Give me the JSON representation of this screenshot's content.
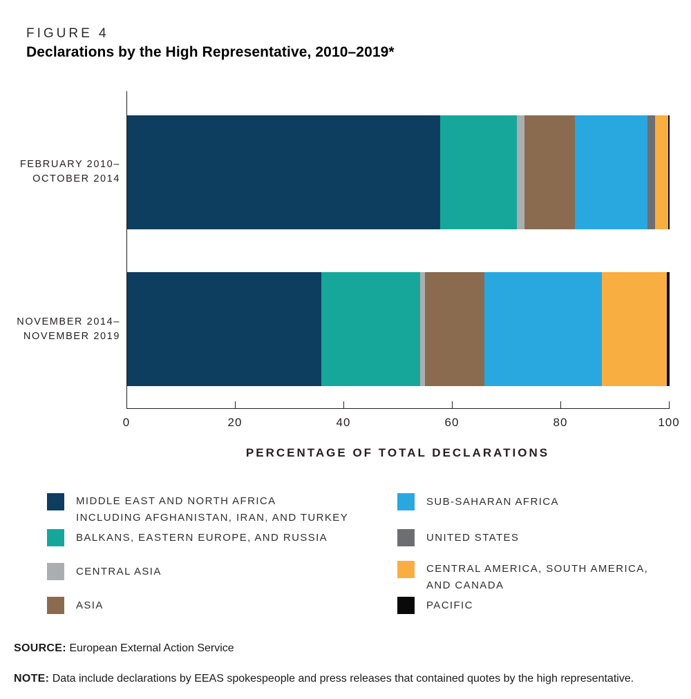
{
  "figure": {
    "label": "FIGURE 4",
    "title": "Declarations by the High Representative, 2010–2019*"
  },
  "chart_data": {
    "type": "bar",
    "orientation": "horizontal",
    "stacked": true,
    "categories": [
      "FEBRUARY 2010–OCTOBER 2014",
      "NOVEMBER 2014–NOVEMBER 2019"
    ],
    "rows": [
      {
        "line1": "FEBRUARY 2010–",
        "line2": "OCTOBER 2014"
      },
      {
        "line1": "NOVEMBER 2014–",
        "line2": "NOVEMBER 2019"
      }
    ],
    "series": [
      {
        "name": "MIDDLE EAST AND NORTH AFRICA INCLUDING AFGHANISTAN, IRAN, AND TURKEY",
        "color": "#0d3d5f",
        "values": [
          57.7,
          35.8
        ]
      },
      {
        "name": "BALKANS, EASTERN EUROPE, AND RUSSIA",
        "color": "#17a79a",
        "values": [
          14.1,
          18.2
        ]
      },
      {
        "name": "CENTRAL ASIA",
        "color": "#abaeb0",
        "values": [
          1.5,
          0.9
        ]
      },
      {
        "name": "ASIA",
        "color": "#8a6b50",
        "values": [
          9.2,
          11.0
        ]
      },
      {
        "name": "SUB-SAHARAN AFRICA",
        "color": "#29a8e0",
        "values": [
          13.4,
          21.6
        ]
      },
      {
        "name": "UNITED STATES",
        "color": "#6d6e71",
        "values": [
          1.4,
          0
        ]
      },
      {
        "name": "CENTRAL AMERICA, SOUTH AMERICA, AND CANADA",
        "color": "#f9ae42",
        "values": [
          2.4,
          12.0
        ]
      },
      {
        "name": "PACIFIC",
        "color": "#0a0a0a",
        "values": [
          0.3,
          0.5
        ]
      }
    ],
    "xlabel": "PERCENTAGE OF TOTAL DECLARATIONS",
    "xlim": [
      0,
      100
    ],
    "xticks": [
      0,
      20,
      40,
      60,
      80,
      100
    ],
    "grid": false,
    "legend_position": "bottom"
  },
  "legend": {
    "left": [
      {
        "color": "#0d3d5f",
        "line1": "MIDDLE EAST AND NORTH AFRICA",
        "line2": "INCLUDING AFGHANISTAN, IRAN, AND TURKEY"
      },
      {
        "color": "#17a79a",
        "line1": "BALKANS, EASTERN EUROPE, AND RUSSIA",
        "line2": ""
      },
      {
        "color": "#abaeb0",
        "line1": "CENTRAL ASIA",
        "line2": ""
      },
      {
        "color": "#8a6b50",
        "line1": "ASIA",
        "line2": ""
      }
    ],
    "right": [
      {
        "color": "#29a8e0",
        "line1": "SUB-SAHARAN AFRICA",
        "line2": ""
      },
      {
        "color": "#6d6e71",
        "line1": "UNITED STATES",
        "line2": ""
      },
      {
        "color": "#f9ae42",
        "line1": "CENTRAL AMERICA, SOUTH AMERICA,",
        "line2": "AND CANADA"
      },
      {
        "color": "#0a0a0a",
        "line1": "PACIFIC",
        "line2": ""
      }
    ]
  },
  "footer": {
    "source_label": "SOURCE:",
    "source_text": "European External Action Service",
    "note_label": "NOTE:",
    "note_text": "Data include declarations by EEAS spokespeople and press releases that contained quotes by the high representative."
  }
}
